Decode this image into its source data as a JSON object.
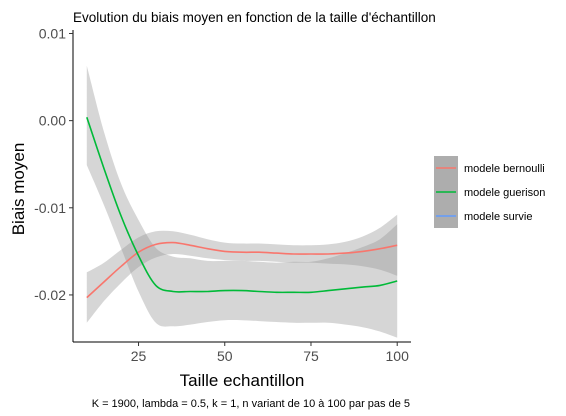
{
  "chart_data": {
    "type": "line",
    "title": "Evolution du biais moyen en fonction de la taille d'échantillon",
    "xlabel": "Taille echantillon",
    "ylabel": "Biais moyen",
    "caption": "K = 1900, lambda = 0.5, k = 1, n variant de 10 à 100 par pas de 5",
    "xlim": [
      6,
      104
    ],
    "ylim": [
      -0.0254,
      0.0104
    ],
    "x_ticks": [
      25,
      50,
      75,
      100
    ],
    "x_tick_labels": [
      "25",
      "50",
      "75",
      "100"
    ],
    "y_ticks": [
      0.01,
      0.0,
      -0.01,
      -0.02
    ],
    "y_tick_labels": [
      "0.01",
      "0.00",
      "-0.01",
      "-0.02"
    ],
    "grid": false,
    "legend_position": "right",
    "series": [
      {
        "name": "modele bernoulli",
        "color": "#F8766D",
        "x": [
          10,
          15,
          20,
          25,
          30,
          35,
          40,
          45,
          50,
          55,
          60,
          65,
          70,
          75,
          80,
          85,
          90,
          95,
          100
        ],
        "y": [
          -0.0203,
          -0.0185,
          -0.0167,
          -0.0151,
          -0.0142,
          -0.014,
          -0.0143,
          -0.0147,
          -0.015,
          -0.0151,
          -0.0151,
          -0.0152,
          -0.0153,
          -0.0153,
          -0.0153,
          -0.0152,
          -0.015,
          -0.0147,
          -0.0143
        ],
        "lower": [
          -0.0232,
          -0.0207,
          -0.0186,
          -0.0168,
          -0.0157,
          -0.0153,
          -0.0155,
          -0.0158,
          -0.016,
          -0.0161,
          -0.0161,
          -0.0162,
          -0.0163,
          -0.0163,
          -0.0164,
          -0.0165,
          -0.0167,
          -0.0171,
          -0.0178
        ],
        "upper": [
          -0.0174,
          -0.0163,
          -0.0148,
          -0.0134,
          -0.0127,
          -0.0127,
          -0.0131,
          -0.0136,
          -0.014,
          -0.0141,
          -0.0141,
          -0.0142,
          -0.0143,
          -0.0143,
          -0.0142,
          -0.0139,
          -0.0133,
          -0.0123,
          -0.0108
        ]
      },
      {
        "name": "modele guerison",
        "color": "#00BA38",
        "x": [
          10,
          15,
          20,
          25,
          30,
          35,
          40,
          45,
          50,
          55,
          60,
          65,
          70,
          75,
          80,
          85,
          90,
          95,
          100
        ],
        "y": [
          0.0004,
          -0.0055,
          -0.011,
          -0.0155,
          -0.0189,
          -0.0196,
          -0.0196,
          -0.0196,
          -0.0195,
          -0.0195,
          -0.0196,
          -0.0197,
          -0.0197,
          -0.0197,
          -0.0195,
          -0.0193,
          -0.0191,
          -0.0189,
          -0.0184
        ],
        "lower": [
          -0.0051,
          -0.0097,
          -0.0147,
          -0.0196,
          -0.0232,
          -0.0236,
          -0.0234,
          -0.0231,
          -0.0229,
          -0.0229,
          -0.023,
          -0.0231,
          -0.0232,
          -0.0232,
          -0.0232,
          -0.0234,
          -0.0237,
          -0.0242,
          -0.0249
        ],
        "upper": [
          0.0063,
          -0.0013,
          -0.0073,
          -0.0114,
          -0.0146,
          -0.0156,
          -0.0158,
          -0.0161,
          -0.0161,
          -0.0161,
          -0.0162,
          -0.0163,
          -0.0162,
          -0.0162,
          -0.0158,
          -0.0152,
          -0.0145,
          -0.0136,
          -0.0119
        ]
      },
      {
        "name": "modele survie",
        "color": "#619CFF",
        "x": [],
        "y": []
      }
    ]
  }
}
